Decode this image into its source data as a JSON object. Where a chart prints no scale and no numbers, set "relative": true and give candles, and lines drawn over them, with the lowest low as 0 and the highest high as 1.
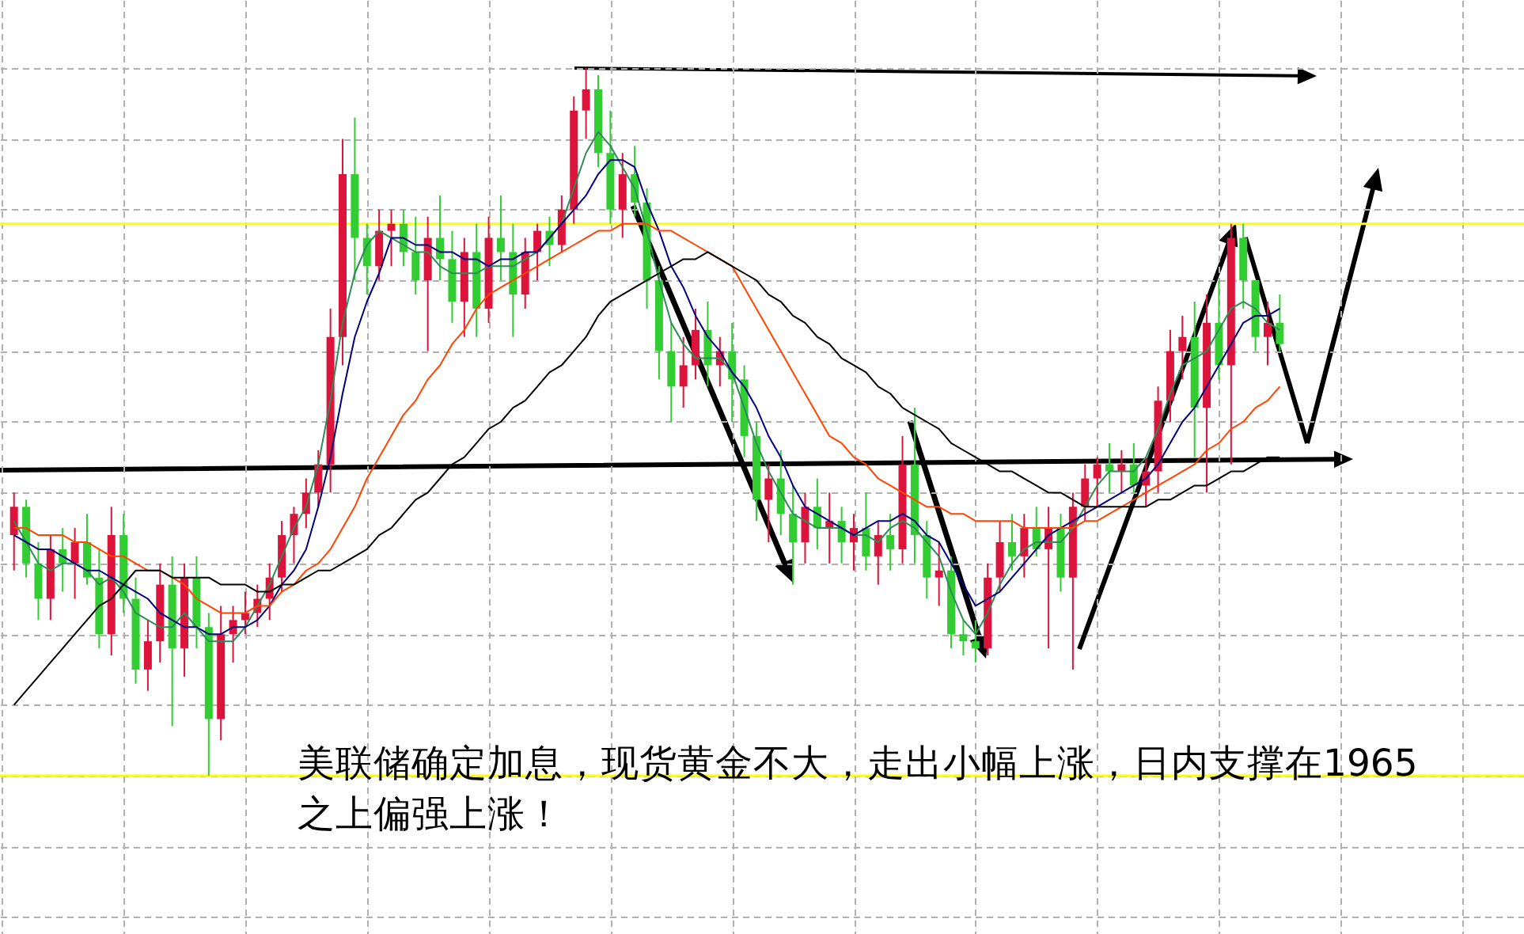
{
  "chart_data": {
    "type": "candlestick",
    "relative": true,
    "grid": true,
    "categories": [
      null,
      null,
      null,
      null,
      null,
      null,
      null,
      null,
      null,
      null,
      null,
      null,
      null,
      null,
      null,
      null,
      null,
      null,
      null,
      null,
      null,
      null,
      null,
      null,
      null,
      null,
      null,
      null,
      null,
      null,
      null,
      null,
      null,
      null,
      null,
      null,
      null,
      null,
      null,
      null,
      null,
      null,
      null,
      null,
      null,
      null,
      null,
      null,
      null,
      null,
      null,
      null,
      null,
      null,
      null,
      null,
      null,
      null,
      null,
      null,
      null,
      null,
      null,
      null,
      null,
      null,
      null,
      null,
      null,
      null,
      null,
      null,
      null,
      null,
      null,
      null,
      null,
      null,
      null,
      null,
      null,
      null,
      null,
      null,
      null,
      null,
      null,
      null,
      null,
      null,
      null,
      null,
      null,
      null,
      null,
      null,
      null,
      null,
      null,
      null,
      null,
      null,
      null,
      null,
      null
    ],
    "colors": [
      "#dc143c",
      "#32cd32",
      "#32cd32",
      "#dc143c",
      "#32cd32",
      "#dc143c",
      "#32cd32",
      "#32cd32",
      "#dc143c",
      "#32cd32",
      "#32cd32",
      "#dc143c",
      "#dc143c",
      "#32cd32",
      "#dc143c",
      "#32cd32",
      "#32cd32",
      "#dc143c",
      "#dc143c",
      "#dc143c",
      "#dc143c",
      "#dc143c",
      "#dc143c",
      "#dc143c",
      "#dc143c",
      "#dc143c",
      "#dc143c",
      "#dc143c",
      "#32cd32",
      "#32cd32",
      "#dc143c",
      "#dc143c",
      "#32cd32",
      "#32cd32",
      "#dc143c",
      "#32cd32",
      "#32cd32",
      "#dc143c",
      "#32cd32",
      "#dc143c",
      "#32cd32",
      "#32cd32",
      "#dc143c",
      "#dc143c",
      "#32cd32",
      "#dc143c",
      "#dc143c",
      "#dc143c",
      "#32cd32",
      "#32cd32",
      "#dc143c",
      "#32cd32",
      "#32cd32",
      "#32cd32",
      "#32cd32",
      "#dc143c",
      "#dc143c",
      "#32cd32",
      "#dc143c",
      "#32cd32",
      "#32cd32",
      "#32cd32",
      "#dc143c",
      "#32cd32",
      "#32cd32",
      "#dc143c",
      "#32cd32",
      "#dc143c",
      "#32cd32",
      "#dc143c",
      "#32cd32",
      "#dc143c",
      "#32cd32",
      "#dc143c",
      "#32cd32",
      "#32cd32",
      "#dc143c",
      "#32cd32",
      "#32cd32",
      "#32cd32",
      "#dc143c",
      "#dc143c",
      "#32cd32",
      "#dc143c",
      "#32cd32",
      "#dc143c",
      "#32cd32",
      "#dc143c",
      "#dc143c",
      "#dc143c",
      "#32cd32",
      "#dc143c",
      "#32cd32",
      "#dc143c",
      "#dc143c",
      "#dc143c",
      "#dc143c",
      "#32cd32",
      "#dc143c",
      "#32cd32",
      "#dc143c",
      "#32cd32",
      "#32cd32",
      "#dc143c",
      "#32cd32"
    ],
    "ohlc": [
      [
        0.34,
        0.4,
        0.29,
        0.38
      ],
      [
        0.38,
        0.39,
        0.28,
        0.3
      ],
      [
        0.3,
        0.33,
        0.22,
        0.25
      ],
      [
        0.25,
        0.34,
        0.22,
        0.32
      ],
      [
        0.32,
        0.35,
        0.26,
        0.3
      ],
      [
        0.3,
        0.35,
        0.25,
        0.33
      ],
      [
        0.33,
        0.37,
        0.27,
        0.28
      ],
      [
        0.28,
        0.32,
        0.18,
        0.2
      ],
      [
        0.2,
        0.38,
        0.17,
        0.34
      ],
      [
        0.34,
        0.37,
        0.23,
        0.25
      ],
      [
        0.25,
        0.28,
        0.13,
        0.15
      ],
      [
        0.15,
        0.22,
        0.12,
        0.19
      ],
      [
        0.19,
        0.3,
        0.16,
        0.27
      ],
      [
        0.27,
        0.31,
        0.07,
        0.18
      ],
      [
        0.18,
        0.3,
        0.14,
        0.28
      ],
      [
        0.28,
        0.31,
        0.18,
        0.21
      ],
      [
        0.21,
        0.23,
        0.0,
        0.08
      ],
      [
        0.08,
        0.24,
        0.05,
        0.2
      ],
      [
        0.2,
        0.24,
        0.16,
        0.22
      ],
      [
        0.22,
        0.26,
        0.2,
        0.23
      ],
      [
        0.23,
        0.27,
        0.21,
        0.25
      ],
      [
        0.25,
        0.3,
        0.22,
        0.28
      ],
      [
        0.28,
        0.36,
        0.26,
        0.34
      ],
      [
        0.34,
        0.38,
        0.3,
        0.37
      ],
      [
        0.37,
        0.42,
        0.35,
        0.4
      ],
      [
        0.4,
        0.46,
        0.38,
        0.44
      ],
      [
        0.44,
        0.66,
        0.4,
        0.62
      ],
      [
        0.62,
        0.9,
        0.58,
        0.85
      ],
      [
        0.85,
        0.93,
        0.7,
        0.76
      ],
      [
        0.76,
        0.78,
        0.68,
        0.72
      ],
      [
        0.72,
        0.8,
        0.7,
        0.77
      ],
      [
        0.77,
        0.8,
        0.72,
        0.78
      ],
      [
        0.78,
        0.8,
        0.72,
        0.74
      ],
      [
        0.74,
        0.79,
        0.68,
        0.7
      ],
      [
        0.7,
        0.79,
        0.6,
        0.76
      ],
      [
        0.76,
        0.82,
        0.7,
        0.73
      ],
      [
        0.73,
        0.77,
        0.64,
        0.67
      ],
      [
        0.67,
        0.76,
        0.62,
        0.74
      ],
      [
        0.74,
        0.78,
        0.62,
        0.66
      ],
      [
        0.66,
        0.79,
        0.64,
        0.76
      ],
      [
        0.76,
        0.82,
        0.7,
        0.74
      ],
      [
        0.74,
        0.78,
        0.62,
        0.68
      ],
      [
        0.68,
        0.76,
        0.66,
        0.74
      ],
      [
        0.74,
        0.78,
        0.7,
        0.77
      ],
      [
        0.77,
        0.79,
        0.72,
        0.75
      ],
      [
        0.75,
        0.82,
        0.74,
        0.8
      ],
      [
        0.8,
        0.96,
        0.78,
        0.94
      ],
      [
        0.94,
        1.0,
        0.9,
        0.97
      ],
      [
        0.97,
        0.99,
        0.86,
        0.88
      ],
      [
        0.88,
        0.94,
        0.78,
        0.8
      ],
      [
        0.8,
        0.88,
        0.76,
        0.85
      ],
      [
        0.85,
        0.89,
        0.79,
        0.81
      ],
      [
        0.81,
        0.83,
        0.66,
        0.7
      ],
      [
        0.7,
        0.72,
        0.56,
        0.6
      ],
      [
        0.6,
        0.64,
        0.5,
        0.55
      ],
      [
        0.55,
        0.62,
        0.52,
        0.58
      ],
      [
        0.58,
        0.66,
        0.56,
        0.63
      ],
      [
        0.63,
        0.67,
        0.55,
        0.58
      ],
      [
        0.58,
        0.62,
        0.55,
        0.6
      ],
      [
        0.6,
        0.64,
        0.5,
        0.56
      ],
      [
        0.56,
        0.58,
        0.45,
        0.48
      ],
      [
        0.48,
        0.5,
        0.36,
        0.39
      ],
      [
        0.39,
        0.44,
        0.33,
        0.42
      ],
      [
        0.42,
        0.46,
        0.34,
        0.37
      ],
      [
        0.37,
        0.41,
        0.27,
        0.33
      ],
      [
        0.33,
        0.4,
        0.3,
        0.38
      ],
      [
        0.38,
        0.42,
        0.32,
        0.35
      ],
      [
        0.35,
        0.4,
        0.3,
        0.36
      ],
      [
        0.36,
        0.38,
        0.3,
        0.33
      ],
      [
        0.33,
        0.37,
        0.29,
        0.35
      ],
      [
        0.35,
        0.4,
        0.29,
        0.31
      ],
      [
        0.31,
        0.36,
        0.27,
        0.34
      ],
      [
        0.34,
        0.37,
        0.29,
        0.32
      ],
      [
        0.32,
        0.48,
        0.3,
        0.44
      ],
      [
        0.44,
        0.52,
        0.3,
        0.34
      ],
      [
        0.34,
        0.36,
        0.25,
        0.28
      ],
      [
        0.28,
        0.33,
        0.24,
        0.29
      ],
      [
        0.29,
        0.31,
        0.18,
        0.2
      ],
      [
        0.2,
        0.22,
        0.17,
        0.19
      ],
      [
        0.19,
        0.22,
        0.16,
        0.18
      ],
      [
        0.18,
        0.3,
        0.17,
        0.28
      ],
      [
        0.28,
        0.36,
        0.26,
        0.33
      ],
      [
        0.33,
        0.37,
        0.29,
        0.31
      ],
      [
        0.31,
        0.37,
        0.28,
        0.35
      ],
      [
        0.35,
        0.38,
        0.31,
        0.32
      ],
      [
        0.32,
        0.38,
        0.18,
        0.35
      ],
      [
        0.35,
        0.37,
        0.26,
        0.28
      ],
      [
        0.28,
        0.4,
        0.15,
        0.38
      ],
      [
        0.38,
        0.44,
        0.36,
        0.42
      ],
      [
        0.42,
        0.45,
        0.38,
        0.44
      ],
      [
        0.44,
        0.47,
        0.4,
        0.43
      ],
      [
        0.43,
        0.46,
        0.4,
        0.44
      ],
      [
        0.44,
        0.47,
        0.4,
        0.41
      ],
      [
        0.41,
        0.45,
        0.38,
        0.43
      ],
      [
        0.43,
        0.55,
        0.4,
        0.53
      ],
      [
        0.53,
        0.63,
        0.5,
        0.6
      ],
      [
        0.6,
        0.65,
        0.56,
        0.62
      ],
      [
        0.62,
        0.67,
        0.45,
        0.52
      ],
      [
        0.52,
        0.68,
        0.4,
        0.64
      ],
      [
        0.64,
        0.7,
        0.56,
        0.58
      ],
      [
        0.58,
        0.78,
        0.44,
        0.76
      ],
      [
        0.76,
        0.78,
        0.66,
        0.7
      ],
      [
        0.7,
        0.7,
        0.6,
        0.62
      ],
      [
        0.62,
        0.67,
        0.58,
        0.64
      ],
      [
        0.64,
        0.68,
        0.6,
        0.61
      ]
    ],
    "series": [
      {
        "type": "line",
        "color": "#2e8b57",
        "values": [
          0.36,
          0.33,
          0.3,
          0.29,
          0.3,
          0.3,
          0.29,
          0.27,
          0.28,
          0.26,
          0.23,
          0.22,
          0.21,
          0.21,
          0.23,
          0.21,
          0.19,
          0.19,
          0.19,
          0.21,
          0.24,
          0.27,
          0.31,
          0.35,
          0.38,
          0.44,
          0.53,
          0.64,
          0.71,
          0.75,
          0.77,
          0.76,
          0.75,
          0.74,
          0.74,
          0.72,
          0.71,
          0.71,
          0.71,
          0.72,
          0.72,
          0.72,
          0.73,
          0.74,
          0.76,
          0.78,
          0.83,
          0.88,
          0.91,
          0.89,
          0.86,
          0.83,
          0.77,
          0.7,
          0.64,
          0.61,
          0.59,
          0.59,
          0.59,
          0.57,
          0.52,
          0.47,
          0.43,
          0.4,
          0.37,
          0.36,
          0.35,
          0.35,
          0.35,
          0.34,
          0.34,
          0.33,
          0.35,
          0.36,
          0.35,
          0.33,
          0.31,
          0.26,
          0.22,
          0.2,
          0.23,
          0.27,
          0.3,
          0.32,
          0.33,
          0.33,
          0.33,
          0.35,
          0.38,
          0.41,
          0.43,
          0.43,
          0.43,
          0.45,
          0.49,
          0.54,
          0.58,
          0.59,
          0.6,
          0.63,
          0.66,
          0.67,
          0.66,
          0.64,
          0.63
        ]
      },
      {
        "type": "line",
        "color": "#000080",
        "values": [
          0.34,
          0.33,
          0.32,
          0.32,
          0.31,
          0.3,
          0.29,
          0.29,
          0.28,
          0.27,
          0.26,
          0.25,
          0.23,
          0.22,
          0.21,
          0.21,
          0.2,
          0.2,
          0.21,
          0.21,
          0.22,
          0.24,
          0.27,
          0.29,
          0.32,
          0.38,
          0.45,
          0.54,
          0.62,
          0.67,
          0.71,
          0.76,
          0.76,
          0.75,
          0.75,
          0.74,
          0.74,
          0.73,
          0.73,
          0.72,
          0.73,
          0.73,
          0.74,
          0.74,
          0.76,
          0.78,
          0.8,
          0.82,
          0.85,
          0.87,
          0.87,
          0.86,
          0.81,
          0.77,
          0.72,
          0.69,
          0.65,
          0.62,
          0.6,
          0.57,
          0.55,
          0.52,
          0.48,
          0.45,
          0.41,
          0.38,
          0.37,
          0.36,
          0.35,
          0.34,
          0.35,
          0.36,
          0.36,
          0.37,
          0.36,
          0.34,
          0.33,
          0.3,
          0.27,
          0.24,
          0.25,
          0.26,
          0.28,
          0.3,
          0.32,
          0.34,
          0.35,
          0.36,
          0.37,
          0.38,
          0.39,
          0.4,
          0.41,
          0.42,
          0.44,
          0.47,
          0.5,
          0.52,
          0.55,
          0.58,
          0.61,
          0.64,
          0.65,
          0.65,
          0.66
        ]
      },
      {
        "type": "line",
        "color": "#ff4500",
        "values": [
          0.35,
          0.35,
          0.34,
          0.34,
          0.34,
          0.33,
          0.33,
          0.32,
          0.31,
          0.31,
          0.3,
          0.29,
          0.29,
          0.28,
          0.27,
          0.25,
          0.24,
          0.23,
          0.23,
          0.23,
          0.24,
          0.24,
          0.26,
          0.27,
          0.29,
          0.3,
          0.32,
          0.35,
          0.38,
          0.42,
          0.45,
          0.48,
          0.51,
          0.53,
          0.56,
          0.58,
          0.61,
          0.63,
          0.66,
          0.68,
          0.69,
          0.7,
          0.71,
          0.72,
          0.73,
          0.74,
          0.75,
          0.76,
          0.77,
          0.77,
          0.78,
          0.78,
          0.78,
          0.77,
          0.77,
          0.76,
          0.75,
          0.74,
          0.73,
          0.72,
          0.69,
          0.66,
          0.63,
          0.6,
          0.57,
          0.54,
          0.51,
          0.48,
          0.47,
          0.45,
          0.44,
          0.42,
          0.41,
          0.4,
          0.39,
          0.38,
          0.38,
          0.37,
          0.37,
          0.36,
          0.36,
          0.36,
          0.36,
          0.35,
          0.35,
          0.35,
          0.35,
          0.35,
          0.36,
          0.36,
          0.37,
          0.38,
          0.39,
          0.4,
          0.41,
          0.42,
          0.43,
          0.44,
          0.46,
          0.47,
          0.49,
          0.5,
          0.52,
          0.53,
          0.55
        ]
      },
      {
        "type": "line",
        "color": "#000000",
        "values": [
          0.1,
          0.12,
          0.14,
          0.16,
          0.18,
          0.2,
          0.22,
          0.24,
          0.25,
          0.27,
          0.29,
          0.29,
          0.29,
          0.28,
          0.28,
          0.28,
          0.28,
          0.27,
          0.27,
          0.27,
          0.26,
          0.26,
          0.27,
          0.27,
          0.28,
          0.29,
          0.29,
          0.3,
          0.31,
          0.32,
          0.34,
          0.35,
          0.37,
          0.39,
          0.4,
          0.42,
          0.44,
          0.45,
          0.47,
          0.49,
          0.5,
          0.52,
          0.53,
          0.55,
          0.57,
          0.58,
          0.6,
          0.62,
          0.65,
          0.67,
          0.68,
          0.69,
          0.7,
          0.71,
          0.72,
          0.73,
          0.73,
          0.74,
          0.73,
          0.72,
          0.71,
          0.7,
          0.68,
          0.67,
          0.65,
          0.64,
          0.62,
          0.61,
          0.59,
          0.58,
          0.57,
          0.55,
          0.54,
          0.52,
          0.51,
          0.5,
          0.49,
          0.47,
          0.46,
          0.45,
          0.44,
          0.43,
          0.43,
          0.42,
          0.41,
          0.4,
          0.4,
          0.39,
          0.38,
          0.38,
          0.38,
          0.38,
          0.38,
          0.38,
          0.39,
          0.39,
          0.4,
          0.41,
          0.41,
          0.42,
          0.43,
          0.43,
          0.44,
          0.45,
          0.45
        ]
      }
    ],
    "ref_lines": [
      {
        "axis": "y",
        "value": 0.78,
        "color": "#ffff00"
      },
      {
        "axis": "y",
        "value": 0.0,
        "color": "#ffff00"
      }
    ],
    "annotations": [
      "美联储确定加息，现货黄金不大，走出小幅上涨，日内支撑在1965之上偏强上涨！"
    ]
  }
}
